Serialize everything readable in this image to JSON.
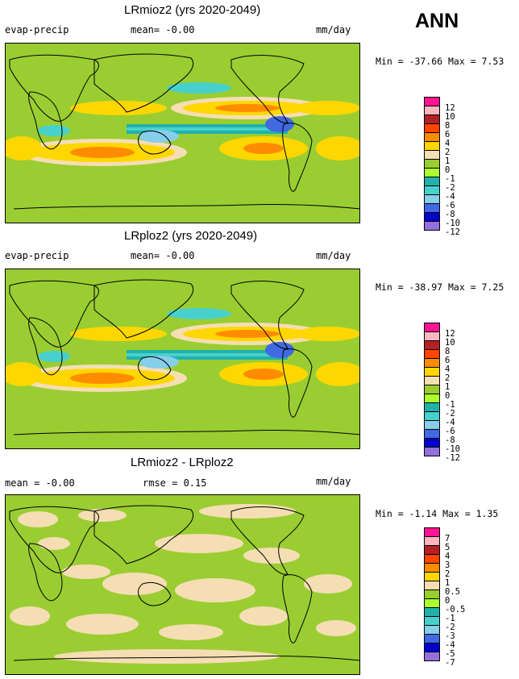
{
  "season": "ANN",
  "panels": [
    {
      "title": "LRmioz2 (yrs 2020-2049)",
      "left_label": "evap-precip",
      "mid_label": "mean=   -0.00",
      "unit": "mm/day",
      "minmax": "Min = -37.66 Max =    7.53",
      "levels": [
        "12",
        "10",
        "8",
        "6",
        "4",
        "2",
        "1",
        "0",
        "-1",
        "-2",
        "-4",
        "-6",
        "-8",
        "-10",
        "-12"
      ],
      "colors": [
        "#ff1493",
        "#ffb6c1",
        "#b22222",
        "#ff4500",
        "#ff8c00",
        "#ffd700",
        "#f5deb3",
        "#9acd32",
        "#adff2f",
        "#20b2aa",
        "#48d1cc",
        "#87ceeb",
        "#4169e1",
        "#0000cd",
        "#9370db",
        "#9370db"
      ]
    },
    {
      "title": "LRploz2 (yrs 2020-2049)",
      "left_label": "evap-precip",
      "mid_label": "mean=   -0.00",
      "unit": "mm/day",
      "minmax": "Min = -38.97 Max =    7.25",
      "levels": [
        "12",
        "10",
        "8",
        "6",
        "4",
        "2",
        "1",
        "0",
        "-1",
        "-2",
        "-4",
        "-6",
        "-8",
        "-10",
        "-12"
      ],
      "colors": [
        "#ff1493",
        "#ffb6c1",
        "#b22222",
        "#ff4500",
        "#ff8c00",
        "#ffd700",
        "#f5deb3",
        "#9acd32",
        "#adff2f",
        "#20b2aa",
        "#48d1cc",
        "#87ceeb",
        "#4169e1",
        "#0000cd",
        "#9370db",
        "#9370db"
      ]
    },
    {
      "title": "LRmioz2 - LRploz2",
      "left_label": "mean =  -0.00",
      "mid_label": "rmse =    0.15",
      "unit": "mm/day",
      "minmax": "Min =  -1.14 Max =    1.35",
      "levels": [
        "7",
        "5",
        "4",
        "3",
        "2",
        "1",
        "0.5",
        "0",
        "-0.5",
        "-1",
        "-2",
        "-3",
        "-4",
        "-5",
        "-7"
      ],
      "colors": [
        "#ff1493",
        "#ffb6c1",
        "#b22222",
        "#ff4500",
        "#ff8c00",
        "#ffd700",
        "#f5deb3",
        "#9acd32",
        "#adff2f",
        "#20b2aa",
        "#48d1cc",
        "#87ceeb",
        "#4169e1",
        "#0000cd",
        "#9370db",
        "#9370db"
      ]
    }
  ]
}
